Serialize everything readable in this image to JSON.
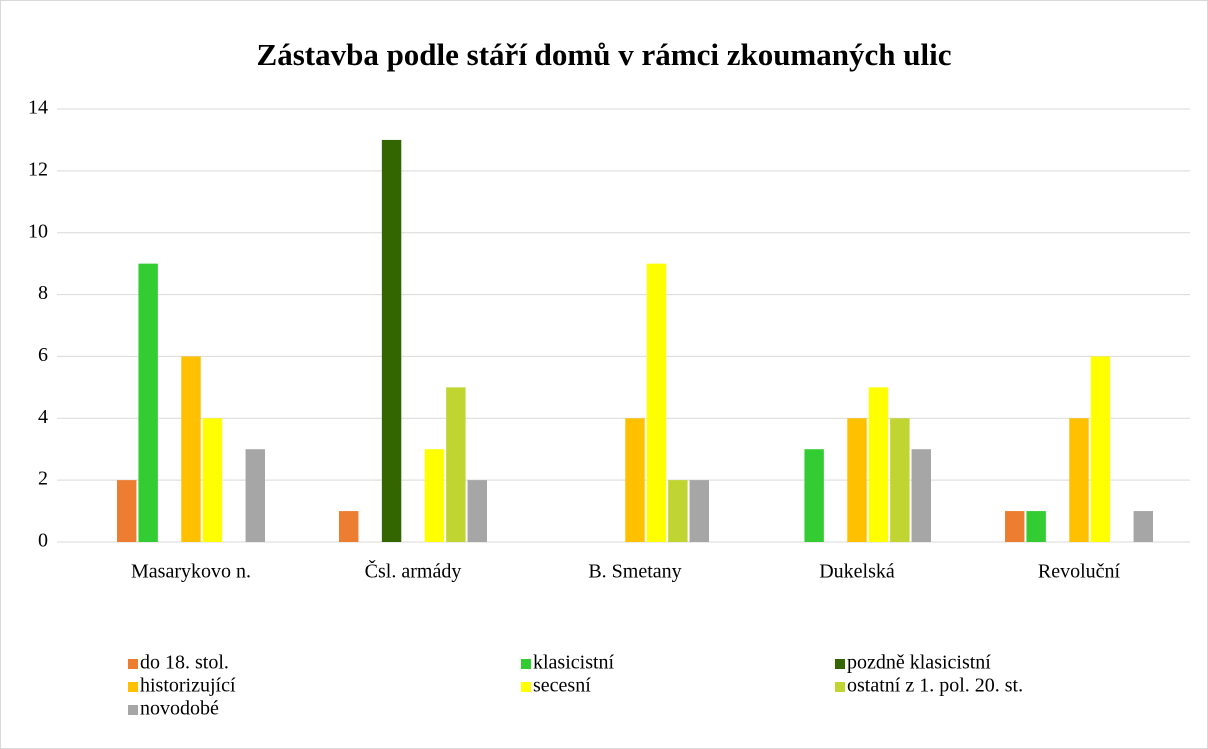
{
  "chart_data": {
    "type": "bar",
    "title": "Zástavba podle stáří domů v rámci zkoumaných ulic",
    "categories": [
      "Masarykovo n.",
      "Čsl. armády",
      "B. Smetany",
      "Dukelská",
      "Revoluční"
    ],
    "series": [
      {
        "name": "do 18. stol.",
        "color": "#ed7d31",
        "values": [
          2,
          1,
          0,
          0,
          1
        ]
      },
      {
        "name": "klasicistní",
        "color": "#33cc33",
        "values": [
          9,
          0,
          0,
          3,
          1
        ]
      },
      {
        "name": "pozdně klasicistní",
        "color": "#336600",
        "values": [
          0,
          13,
          0,
          0,
          0
        ]
      },
      {
        "name": "historizující",
        "color": "#ffc000",
        "values": [
          6,
          0,
          4,
          4,
          4
        ]
      },
      {
        "name": "secesní",
        "color": "#ffff00",
        "values": [
          4,
          3,
          9,
          5,
          6
        ]
      },
      {
        "name": "ostatní z 1. pol. 20. st.",
        "color": "#c0d531",
        "values": [
          0,
          5,
          2,
          4,
          0
        ]
      },
      {
        "name": "novodobé",
        "color": "#a6a6a6",
        "values": [
          3,
          2,
          2,
          3,
          1
        ]
      }
    ],
    "ylim": [
      0,
      14
    ],
    "yticks": [
      0,
      2,
      4,
      6,
      8,
      10,
      12,
      14
    ],
    "grid": true,
    "legend": "bottom"
  }
}
